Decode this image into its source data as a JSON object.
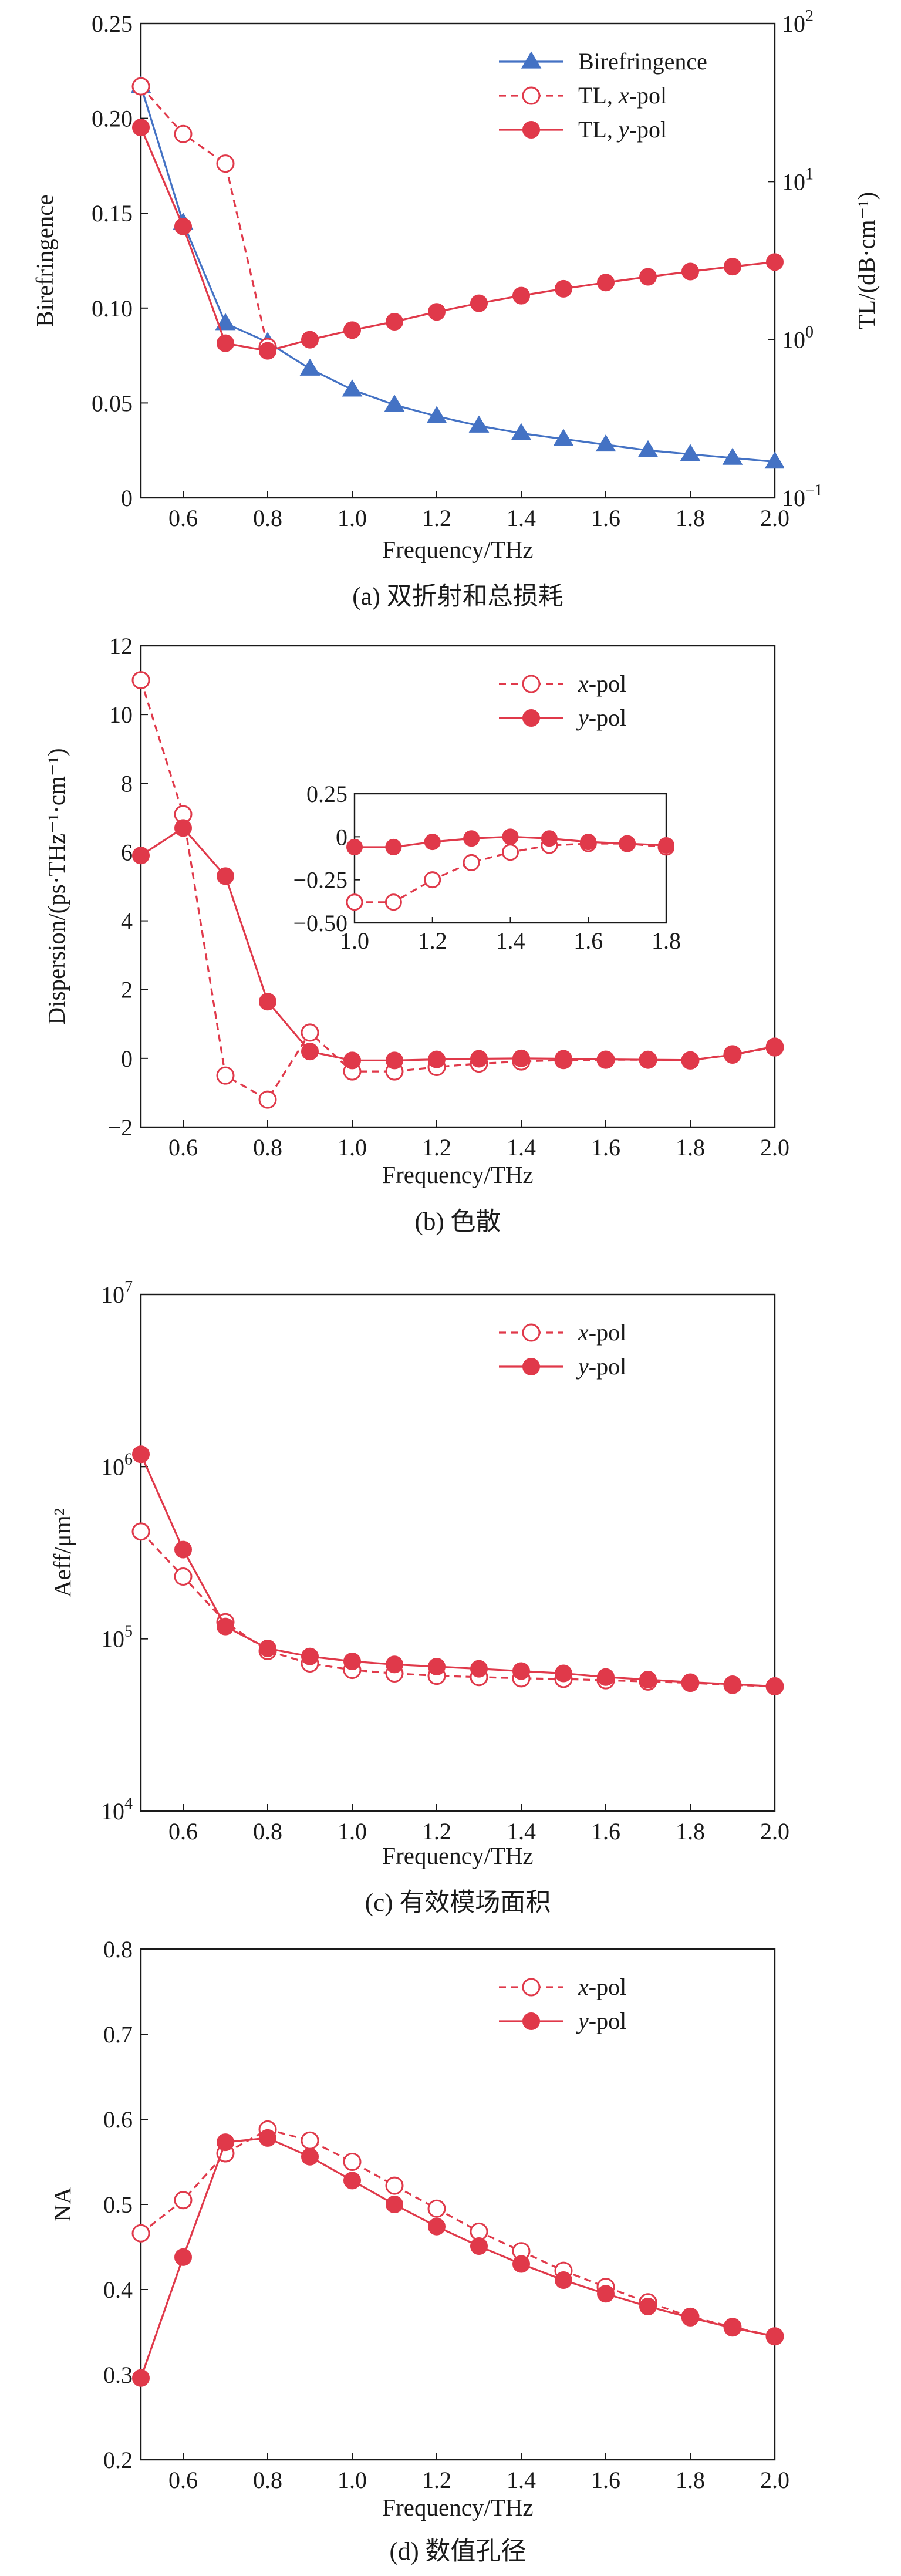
{
  "colors": {
    "blue": "#4472c4",
    "red": "#e0394a",
    "axis": "#1a1a1a"
  },
  "chart_data": [
    {
      "type": "line",
      "caption": "(a) 双折射和总损耗",
      "xlabel": "Frequency/THz",
      "ylabel": "Birefringence",
      "ylabel_right": "TL/(dB·cm⁻¹)",
      "xlim": [
        0.5,
        2.0
      ],
      "ylim": [
        0,
        0.25
      ],
      "y2lim": [
        0.1,
        100
      ],
      "y2scale": "log",
      "xticks": [
        "0.6",
        "0.8",
        "1.0",
        "1.2",
        "1.4",
        "1.6",
        "1.8",
        "2.0"
      ],
      "yticks": [
        "0",
        "0.05",
        "0.10",
        "0.15",
        "0.20",
        "0.25"
      ],
      "y2ticks": [
        {
          "value": 0.1,
          "base": "10",
          "exp": "−1"
        },
        {
          "value": 1,
          "base": "10",
          "exp": "0"
        },
        {
          "value": 10,
          "base": "10",
          "exp": "1"
        },
        {
          "value": 100,
          "base": "10",
          "exp": "2"
        }
      ],
      "legend_position": "top-right",
      "legend": [
        {
          "label": "Birefringence",
          "label_em": "",
          "label_post": ""
        },
        {
          "label": "TL, ",
          "label_em": "x",
          "label_post": "-pol"
        },
        {
          "label": "TL, ",
          "label_em": "y",
          "label_post": "-pol"
        }
      ],
      "x": [
        0.5,
        0.6,
        0.7,
        0.8,
        0.9,
        1.0,
        1.1,
        1.2,
        1.3,
        1.4,
        1.5,
        1.6,
        1.7,
        1.8,
        1.9,
        2.0
      ],
      "series": [
        {
          "axis": "left",
          "marker": "triangle",
          "dash": false,
          "color": "#4472c4",
          "values": [
            0.217,
            0.145,
            0.092,
            0.082,
            0.068,
            0.057,
            0.049,
            0.043,
            0.038,
            0.034,
            0.031,
            0.028,
            0.025,
            0.023,
            0.021,
            0.019
          ]
        },
        {
          "axis": "right",
          "marker": "open-circle",
          "dash": true,
          "color": "#e0394a",
          "x": [
            0.5,
            0.6,
            0.7,
            0.8
          ],
          "values": [
            40,
            20,
            13,
            0.9
          ]
        },
        {
          "axis": "right",
          "marker": "filled-circle",
          "dash": false,
          "color": "#e0394a",
          "values": [
            22,
            5.2,
            0.95,
            0.85,
            1.0,
            1.15,
            1.3,
            1.5,
            1.7,
            1.9,
            2.1,
            2.3,
            2.5,
            2.7,
            2.9,
            3.1
          ]
        }
      ]
    },
    {
      "type": "line",
      "caption": "(b) 色散",
      "xlabel": "Frequency/THz",
      "ylabel": "Dispersion/(ps·THz⁻¹·cm⁻¹)",
      "xlim": [
        0.5,
        2.0
      ],
      "ylim": [
        -2,
        12
      ],
      "xticks": [
        "0.6",
        "0.8",
        "1.0",
        "1.2",
        "1.4",
        "1.6",
        "1.8",
        "2.0"
      ],
      "yticks": [
        "−2",
        "0",
        "2",
        "4",
        "6",
        "8",
        "10",
        "12"
      ],
      "legend_position": "top-right",
      "legend": [
        {
          "label": "",
          "label_em": "x",
          "label_post": "-pol"
        },
        {
          "label": "",
          "label_em": "y",
          "label_post": "-pol"
        }
      ],
      "x": [
        0.5,
        0.6,
        0.7,
        0.8,
        0.9,
        1.0,
        1.1,
        1.2,
        1.3,
        1.4,
        1.5,
        1.6,
        1.7,
        1.8,
        1.9,
        2.0
      ],
      "series": [
        {
          "marker": "open-circle",
          "dash": true,
          "color": "#e0394a",
          "values": [
            11.0,
            7.1,
            -0.5,
            -1.2,
            0.75,
            -0.38,
            -0.38,
            -0.25,
            -0.15,
            -0.09,
            -0.05,
            -0.04,
            -0.04,
            -0.06,
            0.12,
            0.32
          ]
        },
        {
          "marker": "filled-circle",
          "dash": false,
          "color": "#e0394a",
          "values": [
            5.9,
            6.7,
            5.3,
            1.65,
            0.2,
            -0.06,
            -0.06,
            -0.03,
            -0.01,
            0.0,
            -0.01,
            -0.03,
            -0.04,
            -0.05,
            0.1,
            0.35
          ]
        }
      ],
      "inset": {
        "xlim": [
          1.0,
          1.8
        ],
        "ylim": [
          -0.5,
          0.25
        ],
        "xticks": [
          "1.0",
          "1.2",
          "1.4",
          "1.6",
          "1.8"
        ],
        "yticks": [
          "−0.50",
          "−0.25",
          "0",
          "0.25"
        ],
        "x": [
          1.0,
          1.1,
          1.2,
          1.3,
          1.4,
          1.5,
          1.6,
          1.7,
          1.8
        ],
        "series": [
          {
            "marker": "open-circle",
            "dash": true,
            "color": "#e0394a",
            "values": [
              -0.38,
              -0.38,
              -0.25,
              -0.15,
              -0.09,
              -0.05,
              -0.04,
              -0.04,
              -0.06
            ]
          },
          {
            "marker": "filled-circle",
            "dash": false,
            "color": "#e0394a",
            "values": [
              -0.06,
              -0.06,
              -0.03,
              -0.01,
              0.0,
              -0.01,
              -0.03,
              -0.04,
              -0.05
            ]
          }
        ]
      }
    },
    {
      "type": "line",
      "caption": "(c) 有效模场面积",
      "xlabel": "Frequency/THz",
      "ylabel": "Aeff/μm²",
      "xlim": [
        0.5,
        2.0
      ],
      "ylim": [
        10000,
        10000000
      ],
      "yscale": "log",
      "xticks": [
        "0.6",
        "0.8",
        "1.0",
        "1.2",
        "1.4",
        "1.6",
        "1.8",
        "2.0"
      ],
      "yticks": [
        {
          "value": 10000,
          "base": "10",
          "exp": "4"
        },
        {
          "value": 100000,
          "base": "10",
          "exp": "5"
        },
        {
          "value": 1000000,
          "base": "10",
          "exp": "6"
        },
        {
          "value": 10000000,
          "base": "10",
          "exp": "7"
        }
      ],
      "legend_position": "top-right",
      "legend": [
        {
          "label": "",
          "label_em": "x",
          "label_post": "-pol"
        },
        {
          "label": "",
          "label_em": "y",
          "label_post": "-pol"
        }
      ],
      "x": [
        0.5,
        0.6,
        0.7,
        0.8,
        0.9,
        1.0,
        1.1,
        1.2,
        1.3,
        1.4,
        1.5,
        1.6,
        1.7,
        1.8,
        1.9,
        2.0
      ],
      "series": [
        {
          "marker": "open-circle",
          "dash": true,
          "color": "#e0394a",
          "values": [
            420000,
            230000,
            125000,
            85000,
            72000,
            66000,
            63000,
            61000,
            60000,
            59000,
            58500,
            57500,
            56500,
            55500,
            54000,
            53000
          ]
        },
        {
          "marker": "filled-circle",
          "dash": false,
          "color": "#e0394a",
          "values": [
            1180000,
            330000,
            118000,
            88000,
            79000,
            74000,
            71000,
            69000,
            67000,
            65000,
            63000,
            60000,
            58000,
            56000,
            54500,
            53000
          ]
        }
      ]
    },
    {
      "type": "line",
      "caption": "(d) 数值孔径",
      "xlabel": "Frequency/THz",
      "ylabel": "NA",
      "xlim": [
        0.5,
        2.0
      ],
      "ylim": [
        0.2,
        0.8
      ],
      "xticks": [
        "0.6",
        "0.8",
        "1.0",
        "1.2",
        "1.4",
        "1.6",
        "1.8",
        "2.0"
      ],
      "yticks": [
        "0.2",
        "0.3",
        "0.4",
        "0.5",
        "0.6",
        "0.7",
        "0.8"
      ],
      "legend_position": "top-right",
      "legend": [
        {
          "label": "",
          "label_em": "x",
          "label_post": "-pol"
        },
        {
          "label": "",
          "label_em": "y",
          "label_post": "-pol"
        }
      ],
      "x": [
        0.5,
        0.6,
        0.7,
        0.8,
        0.9,
        1.0,
        1.1,
        1.2,
        1.3,
        1.4,
        1.5,
        1.6,
        1.7,
        1.8,
        1.9,
        2.0
      ],
      "series": [
        {
          "marker": "open-circle",
          "dash": true,
          "color": "#e0394a",
          "values": [
            0.466,
            0.505,
            0.56,
            0.588,
            0.575,
            0.55,
            0.522,
            0.495,
            0.468,
            0.445,
            0.422,
            0.403,
            0.385,
            0.368,
            0.356,
            0.345
          ]
        },
        {
          "marker": "filled-circle",
          "dash": false,
          "color": "#e0394a",
          "values": [
            0.296,
            0.438,
            0.573,
            0.578,
            0.556,
            0.528,
            0.5,
            0.474,
            0.451,
            0.43,
            0.411,
            0.395,
            0.38,
            0.367,
            0.355,
            0.345
          ]
        }
      ]
    }
  ]
}
